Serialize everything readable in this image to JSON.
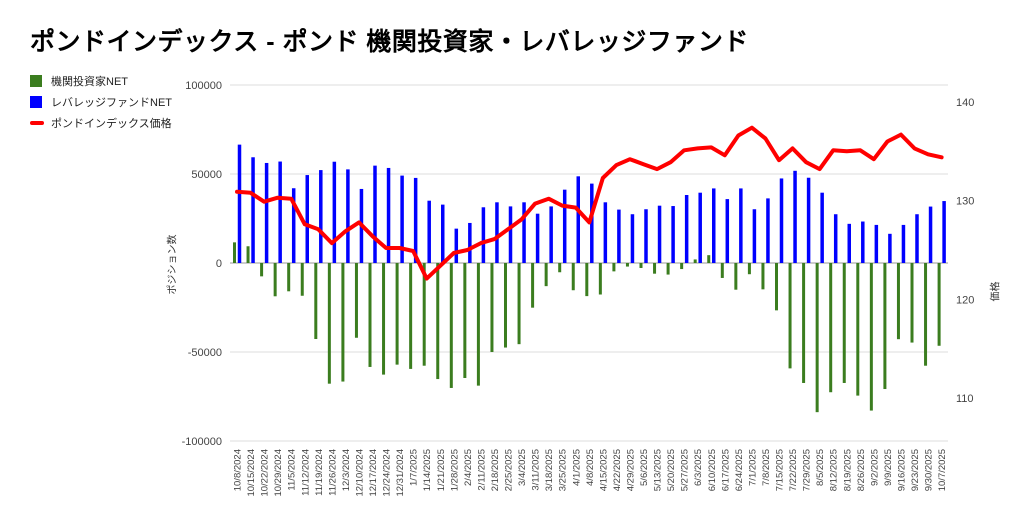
{
  "title": "ポンドインデックス - ポンド 機関投資家・レバレッジファンド",
  "legend": {
    "items": [
      {
        "label": "機関投資家NET",
        "color": "#3b7d1f",
        "shape": "square"
      },
      {
        "label": "レバレッジファンドNET",
        "color": "#0000ff",
        "shape": "square"
      },
      {
        "label": "ポンドインデックス価格",
        "color": "#ff0000",
        "shape": "dash"
      }
    ]
  },
  "chart_data": {
    "type": "mixed-bar-line",
    "title": "ポンドインデックス - ポンド 機関投資家・レバレッジファンド",
    "grid": true,
    "legend_position": "left-top",
    "categories": [
      "10/8/2024",
      "10/15/2024",
      "10/22/2024",
      "10/29/2024",
      "11/5/2024",
      "11/12/2024",
      "11/19/2024",
      "11/26/2024",
      "12/3/2024",
      "12/10/2024",
      "12/17/2024",
      "12/24/2024",
      "12/31/2024",
      "1/7/2025",
      "1/14/2025",
      "1/21/2025",
      "1/28/2025",
      "2/4/2025",
      "2/11/2025",
      "2/18/2025",
      "2/25/2025",
      "3/4/2025",
      "3/11/2025",
      "3/18/2025",
      "3/25/2025",
      "4/1/2025",
      "4/8/2025",
      "4/15/2025",
      "4/22/2025",
      "4/29/2025",
      "5/6/2025",
      "5/13/2025",
      "5/20/2025",
      "5/27/2025",
      "6/3/2025",
      "6/10/2025",
      "6/17/2025",
      "6/24/2025",
      "7/1/2025",
      "7/8/2025",
      "7/15/2025",
      "7/22/2025",
      "7/29/2025",
      "8/5/2025",
      "8/12/2025",
      "8/19/2025",
      "8/26/2025",
      "9/2/2025",
      "9/9/2025",
      "9/16/2025",
      "9/23/2025",
      "9/30/2025",
      "10/7/2025"
    ],
    "series": [
      {
        "name": "機関投資家NET",
        "type": "bar",
        "axis": "left",
        "color": "#3b7d1f",
        "values": [
          11600,
          9400,
          -7500,
          -18700,
          -15900,
          -18400,
          -42700,
          -67800,
          -66600,
          -42000,
          -58400,
          -62700,
          -57100,
          -59500,
          -57700,
          -65200,
          -70200,
          -64600,
          -68900,
          -50000,
          -47500,
          -45600,
          -25100,
          -13000,
          -5200,
          -15300,
          -18600,
          -17700,
          -4700,
          -2000,
          -2800,
          -6000,
          -6500,
          -3400,
          2000,
          4400,
          -8400,
          -15000,
          -6300,
          -14800,
          -26600,
          -59200,
          -67400,
          -83800,
          -72600,
          -67400,
          -74500,
          -82900,
          -70800,
          -42800,
          -44700,
          -57700,
          -46500
        ]
      },
      {
        "name": "レバレッジファンドNET",
        "type": "bar",
        "axis": "left",
        "color": "#0000ff",
        "values": [
          66500,
          59400,
          56200,
          57000,
          42000,
          49400,
          52200,
          56900,
          52600,
          41600,
          54700,
          53400,
          49100,
          47800,
          35000,
          32800,
          19300,
          22500,
          31300,
          34100,
          31800,
          34100,
          27700,
          31800,
          41200,
          48700,
          44600,
          34100,
          30000,
          27400,
          30200,
          32200,
          32000,
          38200,
          39500,
          41900,
          35900,
          41900,
          30200,
          36300,
          47500,
          51800,
          47900,
          39500,
          27400,
          22000,
          23300,
          21400,
          16400,
          21400,
          27400,
          31700,
          34800
        ]
      },
      {
        "name": "ポンドインデックス価格",
        "type": "line",
        "axis": "right",
        "color": "#ff0000",
        "values": [
          130.9,
          130.8,
          129.9,
          130.3,
          130.2,
          127.6,
          127.1,
          125.7,
          126.9,
          127.8,
          126.4,
          125.2,
          125.2,
          124.9,
          122.1,
          123.4,
          124.7,
          125.0,
          125.7,
          126.1,
          127.1,
          128.1,
          129.7,
          130.2,
          129.5,
          129.3,
          127.8,
          132.3,
          133.6,
          134.2,
          133.7,
          133.2,
          133.9,
          135.1,
          135.3,
          135.4,
          134.6,
          136.6,
          137.4,
          136.3,
          134.1,
          135.3,
          133.9,
          133.2,
          135.1,
          135.0,
          135.1,
          134.2,
          136.0,
          136.7,
          135.3,
          134.7,
          134.4
        ]
      }
    ],
    "left_axis": {
      "title": "ポジション数",
      "ticks": [
        100000,
        50000,
        0,
        -50000,
        -100000
      ],
      "range": [
        -100000,
        100000
      ]
    },
    "right_axis": {
      "title": "価格",
      "ticks": [
        140,
        130,
        120,
        110
      ],
      "range_approx": [
        106,
        142
      ]
    }
  }
}
